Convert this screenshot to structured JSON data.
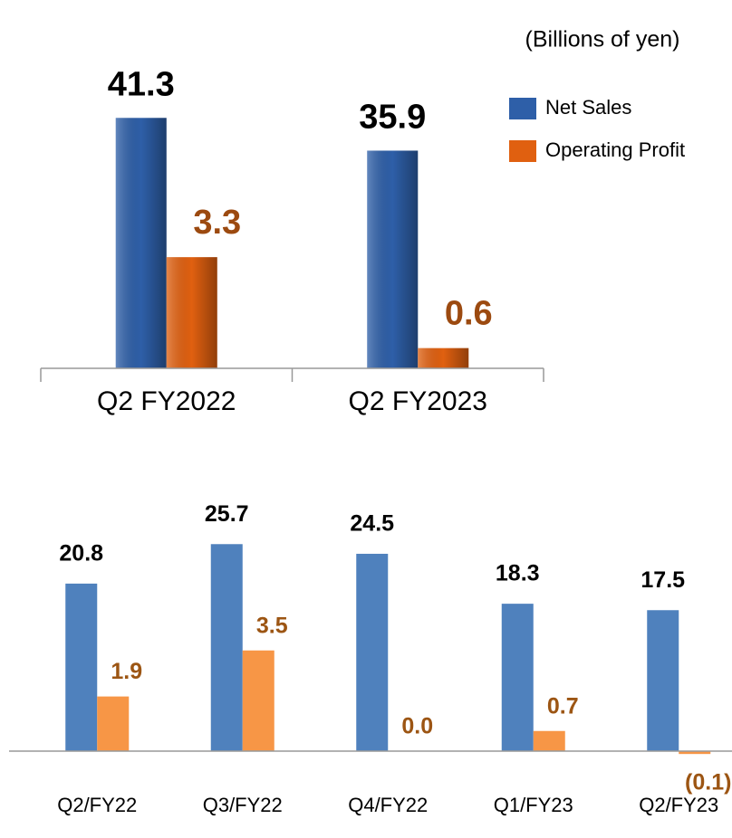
{
  "chart_data": [
    {
      "type": "bar",
      "subtitle": "(Billions of yen)",
      "categories": [
        "Q2 FY2022",
        "Q2 FY2023"
      ],
      "series": [
        {
          "name": "Net Sales",
          "color": "#2e5fa8",
          "values": [
            41.3,
            35.9
          ]
        },
        {
          "name": "Operating Profit",
          "color": "#e06010",
          "axis": "y2",
          "values": [
            3.3,
            0.6
          ]
        }
      ],
      "ylim": [
        0,
        50
      ],
      "y2lim": [
        0,
        9
      ]
    },
    {
      "type": "bar",
      "categories": [
        "Q2/FY22",
        "Q3/FY22",
        "Q4/FY22",
        "Q1/FY23",
        "Q2/FY23"
      ],
      "series": [
        {
          "color": "#4f81bd",
          "values": [
            20.8,
            25.7,
            24.5,
            18.3,
            17.5
          ]
        },
        {
          "color": "#f79646",
          "axis": "y2",
          "values": [
            1.9,
            3.5,
            0,
            0.7,
            -0.1
          ],
          "value_labels": [
            "1.9",
            "3.5",
            "0.0",
            "0.7",
            "(0.1)"
          ]
        }
      ],
      "ylim": [
        0,
        30
      ],
      "y2lim": [
        0,
        8.4
      ]
    }
  ]
}
